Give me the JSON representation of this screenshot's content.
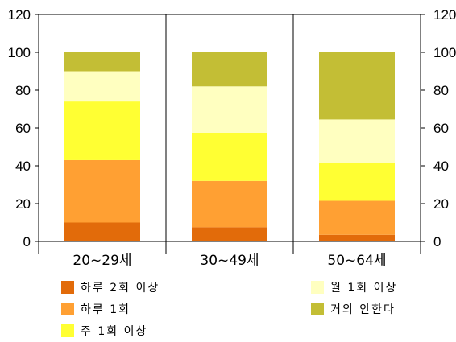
{
  "chart_data": {
    "type": "bar",
    "stacked": true,
    "categories": [
      "20~29세",
      "30~49세",
      "50~64세"
    ],
    "ylim": [
      0,
      120
    ],
    "yticks": [
      0,
      20,
      40,
      60,
      80,
      100,
      120
    ],
    "grid": false,
    "legend_placement": "bottom",
    "series": [
      {
        "name": "하루 2회 이상",
        "color": "#E26B0A",
        "values": [
          10,
          7.5,
          3.5
        ]
      },
      {
        "name": "하루 1회",
        "color": "#FFA033",
        "values": [
          33,
          24.5,
          18
        ]
      },
      {
        "name": "주 1회 이상",
        "color": "#FFFF33",
        "values": [
          31,
          25.5,
          20
        ]
      },
      {
        "name": "월 1회 이상",
        "color": "#FFFFC0",
        "values": [
          16,
          24.5,
          23
        ]
      },
      {
        "name": "거의 안한다",
        "color": "#C3BE35",
        "values": [
          10,
          18,
          35.5
        ]
      }
    ]
  }
}
